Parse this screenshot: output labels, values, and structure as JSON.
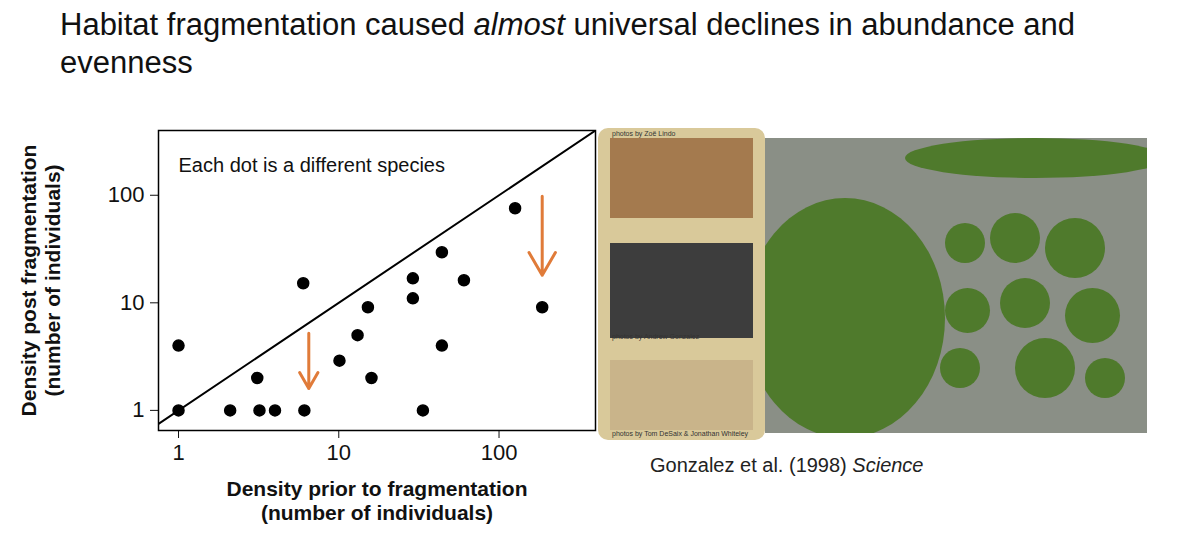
{
  "chart_data": {
    "type": "scatter",
    "title": "Habitat fragmentation caused almost universal declines in abundance and evenness",
    "title_italic": "almost",
    "x_label": "Density prior to fragmentation\n(number of individuals)",
    "y_label": "Density post fragmentation\n(number of individuals)",
    "log": true,
    "xlim": [
      0.75,
      400
    ],
    "ylim": [
      0.65,
      400
    ],
    "xticks": [
      1,
      10,
      100
    ],
    "yticks": [
      1,
      10,
      100
    ],
    "x": [
      1,
      1,
      2.1,
      3.1,
      3.2,
      4.0,
      6.0,
      6.1,
      10.1,
      13.1,
      15.2,
      16.0,
      29.0,
      29.0,
      33.5,
      44.0,
      44.0,
      60.4,
      126,
      186
    ],
    "values": [
      1,
      4.0,
      1,
      2.0,
      1,
      1,
      15.2,
      1,
      2.9,
      5.0,
      9.1,
      2.0,
      16.9,
      11.0,
      1,
      29.5,
      4.0,
      16.2,
      75.7,
      9.1
    ],
    "color": "#000000",
    "marker": "circle",
    "line": {
      "x": [
        0.75,
        400
      ],
      "values": [
        0.75,
        400
      ],
      "color": "#000000"
    },
    "annotations": [
      {
        "text": "Each dot is a different species",
        "x": 1,
        "y": 190
      }
    ],
    "arrows": [
      {
        "x": 6.5,
        "y1": 5.2,
        "y2": 1.6,
        "color": "#e07b39"
      },
      {
        "x": 186,
        "y1": 98,
        "y2": 18,
        "color": "#e07b39"
      }
    ],
    "caption": "Gonzalez et al. (1998) Science",
    "caption_italic": "Science",
    "photo_credits": [
      "photos by Zoë Lindo",
      "photos by Andrew Gonzalez",
      "photos by Tom DeSaix & Jonathan Whiteley"
    ]
  }
}
